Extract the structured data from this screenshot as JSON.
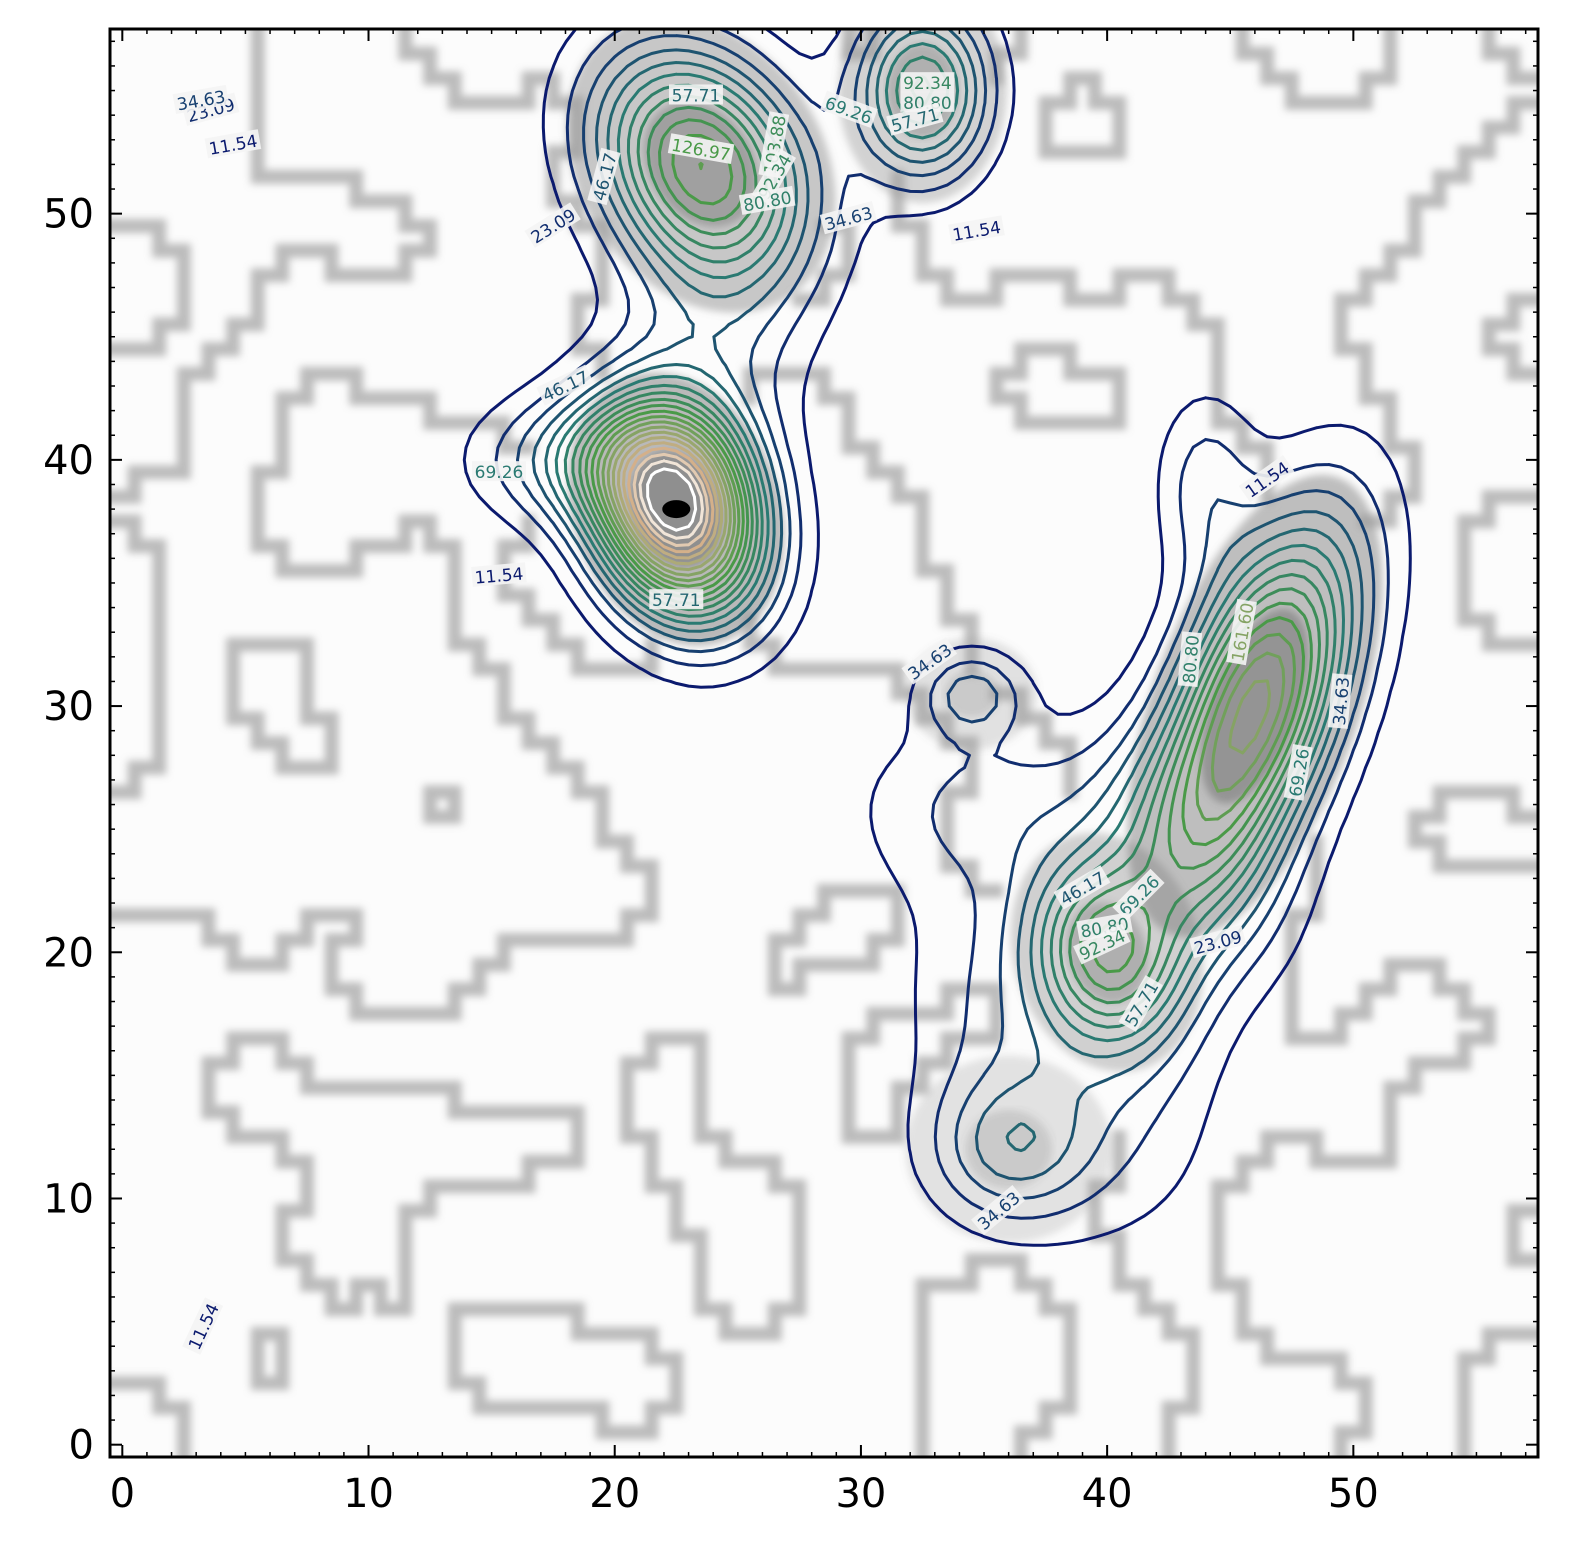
{
  "chart_data": {
    "type": "contour",
    "title": "",
    "xlabel": "",
    "ylabel": "",
    "xlim": [
      -0.5,
      57.5
    ],
    "ylim": [
      -0.5,
      57.5
    ],
    "x_ticks": [
      0,
      10,
      20,
      30,
      40,
      50
    ],
    "y_ticks": [
      0,
      10,
      20,
      30,
      40,
      50
    ],
    "background": "grayscale density image",
    "colormap": "gist_earth",
    "contour_levels": [
      11.54,
      23.09,
      34.63,
      46.17,
      57.71,
      69.26,
      80.8,
      92.34,
      103.88,
      115.43,
      126.97,
      138.51,
      150.06,
      161.6,
      173.14,
      184.68,
      196.23,
      207.77,
      219.31,
      230.86,
      242.4
    ],
    "contour_labels": [
      "11.54",
      "23.09",
      "34.63",
      "46.17",
      "57.71",
      "69.26",
      "80.80",
      "92.34",
      "103.88",
      "126.97",
      "161.60"
    ],
    "peaks": [
      {
        "x": 22.5,
        "y": 38,
        "value": 245
      },
      {
        "x": 23.5,
        "y": 52,
        "value": 135
      },
      {
        "x": 46,
        "y": 30,
        "value": 165
      },
      {
        "x": 40,
        "y": 20,
        "value": 100
      },
      {
        "x": 32.5,
        "y": 55,
        "value": 95
      },
      {
        "x": 36,
        "y": 12,
        "value": 40
      },
      {
        "x": 34.5,
        "y": 30.5,
        "value": 38
      }
    ],
    "colors": {
      "low": "#0b1a6e",
      "mid": "#2a7a72",
      "high": "#4a9a48",
      "peak": "#d4b08a"
    }
  }
}
